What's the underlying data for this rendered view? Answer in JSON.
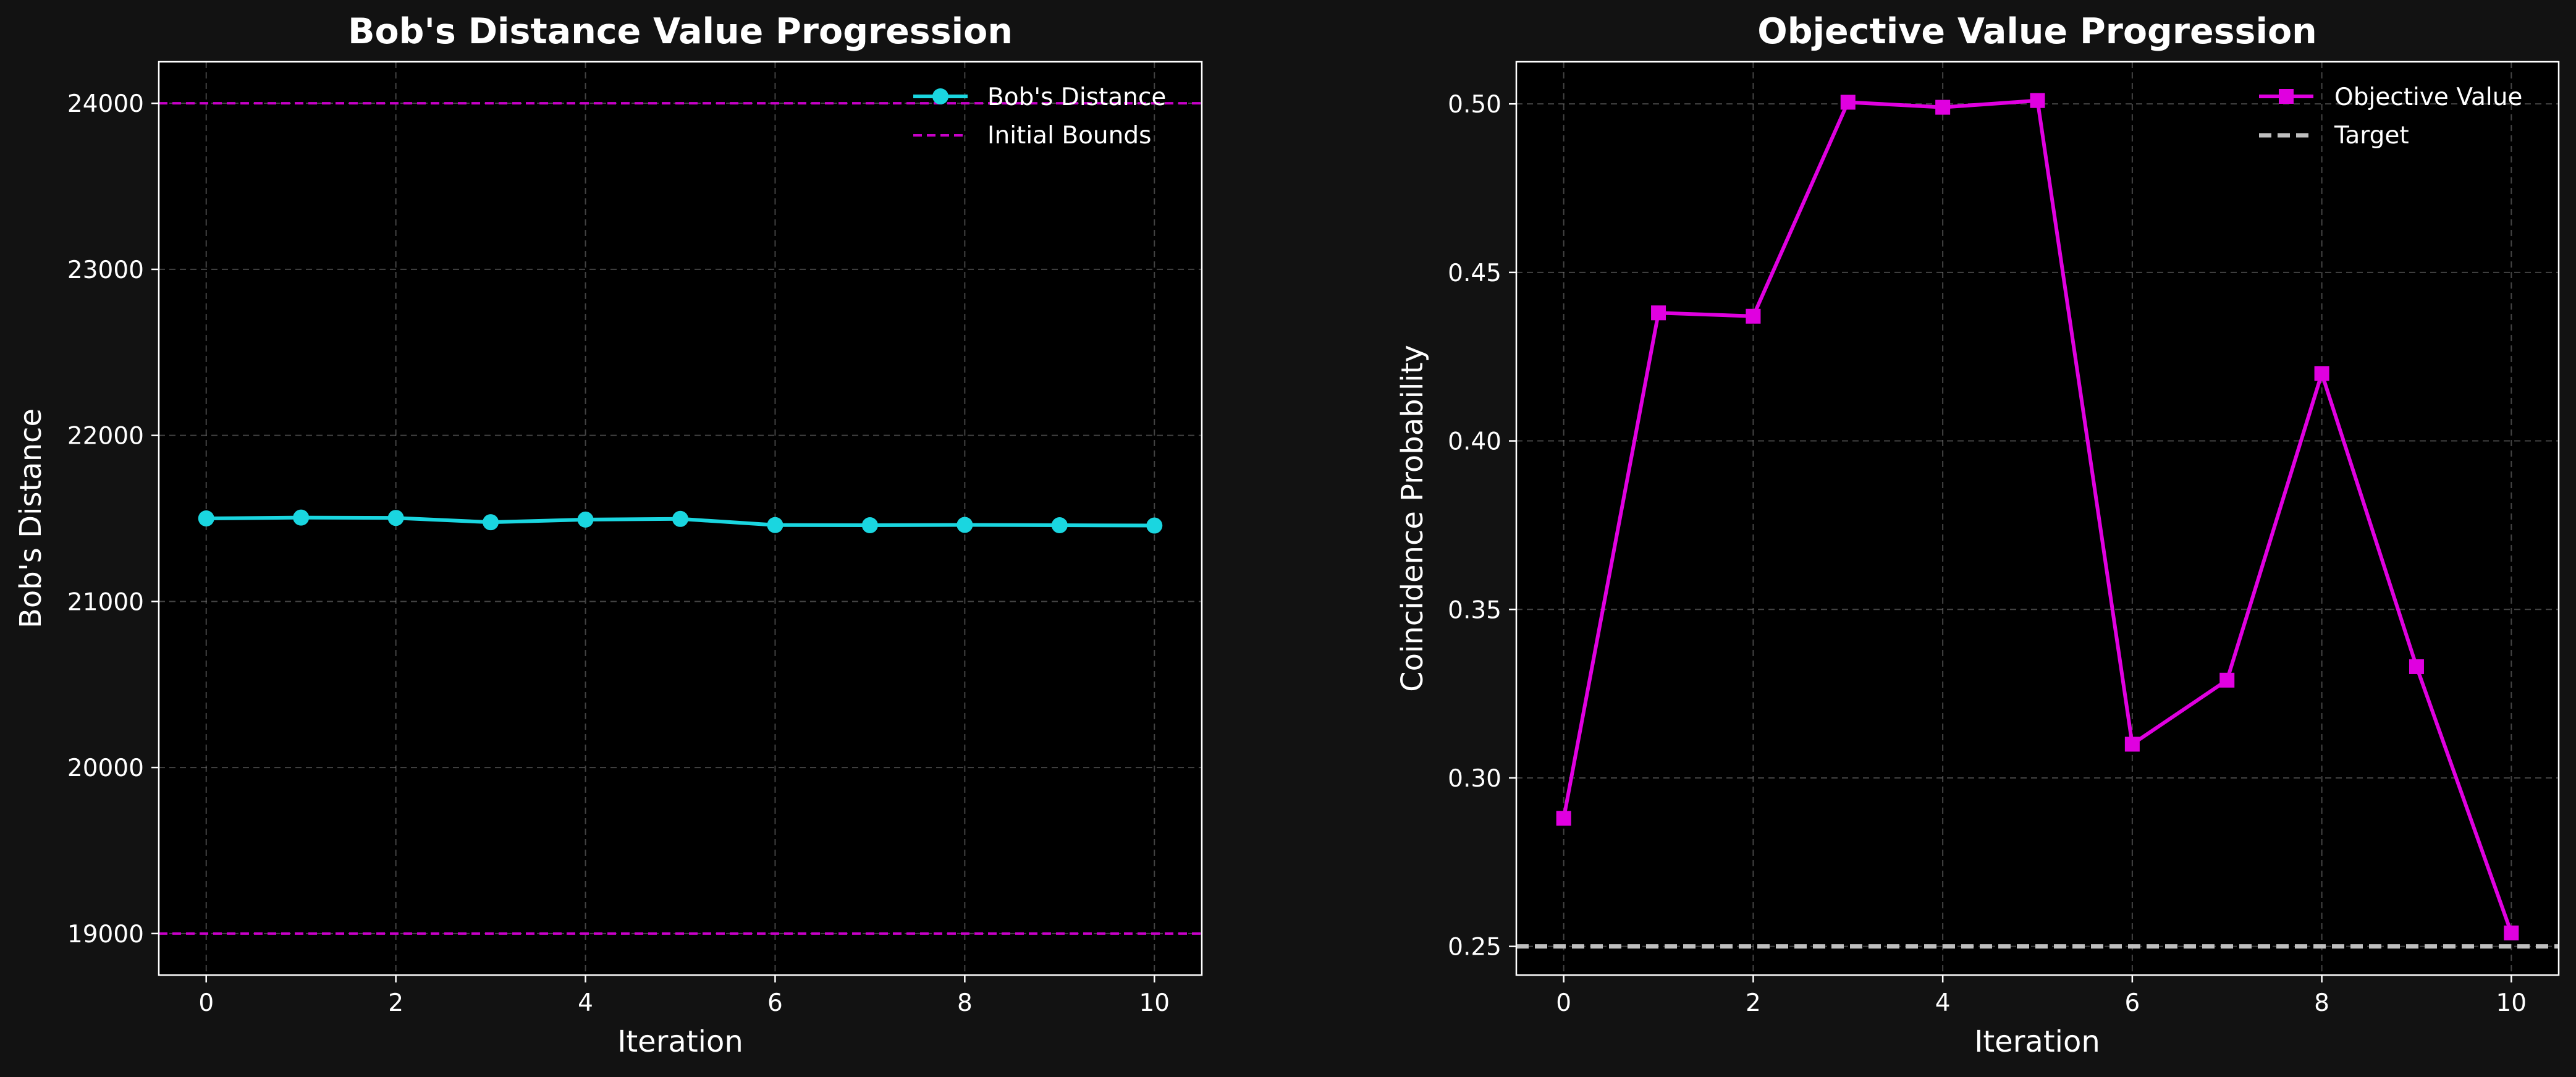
{
  "chart_data": [
    {
      "type": "line",
      "title": "Bob's Distance Value Progression",
      "xlabel": "Iteration",
      "ylabel": "Bob's Distance",
      "xlim": [
        -0.5,
        10.5
      ],
      "ylim": [
        18750,
        24250
      ],
      "xticks": [
        0,
        2,
        4,
        6,
        8,
        10
      ],
      "yticks": [
        19000,
        20000,
        21000,
        22000,
        23000,
        24000
      ],
      "grid": true,
      "legend_position": "upper right",
      "series": [
        {
          "name": "Bob's Distance",
          "color": "#1ad6e0",
          "marker": "circle",
          "x": [
            0,
            1,
            2,
            3,
            4,
            5,
            6,
            7,
            8,
            9,
            10
          ],
          "y": [
            21500,
            21505,
            21503,
            21477,
            21493,
            21497,
            21460,
            21459,
            21461,
            21459,
            21457
          ]
        }
      ],
      "reference_lines": [
        {
          "name": "Initial Bounds",
          "y": 19000,
          "color": "#c800c8",
          "style": "dashed"
        },
        {
          "y": 24000,
          "color": "#c800c8",
          "style": "dashed"
        }
      ]
    },
    {
      "type": "line",
      "title": "Objective Value Progression",
      "xlabel": "Iteration",
      "ylabel": "Coincidence Probability",
      "xlim": [
        -0.5,
        10.5
      ],
      "ylim": [
        0.2415,
        0.5125
      ],
      "xticks": [
        0,
        2,
        4,
        6,
        8,
        10
      ],
      "yticks": [
        0.25,
        0.3,
        0.35,
        0.4,
        0.45,
        0.5
      ],
      "ytick_labels": [
        "0.25",
        "0.30",
        "0.35",
        "0.40",
        "0.45",
        "0.50"
      ],
      "grid": true,
      "legend_position": "upper right",
      "series": [
        {
          "name": "Objective Value",
          "color": "#e000e0",
          "marker": "square",
          "x": [
            0,
            1,
            2,
            3,
            4,
            5,
            6,
            7,
            8,
            9,
            10
          ],
          "y": [
            0.288,
            0.438,
            0.437,
            0.5005,
            0.499,
            0.501,
            0.31,
            0.329,
            0.42,
            0.333,
            0.254
          ]
        }
      ],
      "reference_lines": [
        {
          "name": "Target",
          "y": 0.25,
          "color": "#bfbfbf",
          "style": "dashed"
        }
      ]
    }
  ]
}
